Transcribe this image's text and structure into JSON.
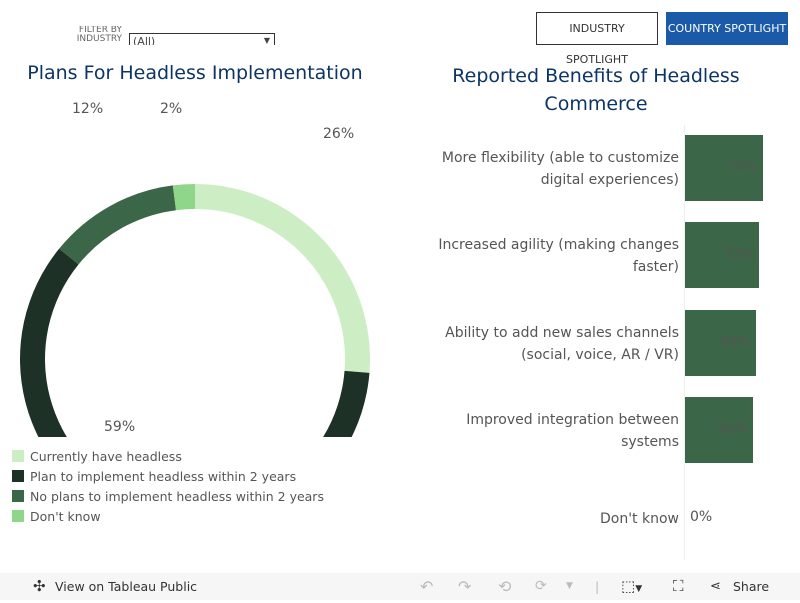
{
  "filter": {
    "label": "FILTER BY INDUSTRY",
    "value": "(All)"
  },
  "buttons": {
    "industry": "INDUSTRY SPOTLIGHT",
    "country": "COUNTRY SPOTLIGHT"
  },
  "donut": {
    "title": "Plans For Headless Implementation",
    "slices": [
      {
        "label": "Currently have headless",
        "value": 26,
        "text": "26%",
        "color": "#cdeec4"
      },
      {
        "label": "Plan to implement headless within 2 years",
        "value": 59,
        "text": "59%",
        "color": "#1d3126"
      },
      {
        "label": "No plans to implement headless within 2 years",
        "value": 12,
        "text": "12%",
        "color": "#3c6648"
      },
      {
        "label": "Don't know",
        "value": 2,
        "text": "2%",
        "color": "#8fd68a"
      }
    ]
  },
  "bars": {
    "title": "Reported Benefits of Headless Commerce",
    "items": [
      {
        "label": "More flexibility (able to customize digital experiences)",
        "value": 76,
        "text": "76%"
      },
      {
        "label": "Increased agility (making changes faster)",
        "value": 72,
        "text": "72%"
      },
      {
        "label": "Ability to add new sales channels (social, voice, AR / VR)",
        "value": 69,
        "text": "69%"
      },
      {
        "label": "Improved integration between systems",
        "value": 66,
        "text": "66%"
      },
      {
        "label": "Don't know",
        "value": 0,
        "text": "0%"
      }
    ]
  },
  "toolbar": {
    "view": "View on Tableau Public",
    "share": "Share"
  }
}
